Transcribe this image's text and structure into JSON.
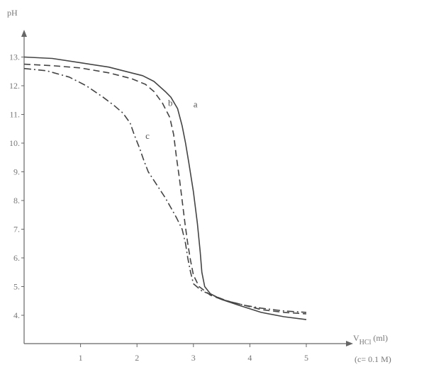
{
  "chart_data": {
    "type": "line",
    "title": "",
    "ylabel": "pH",
    "xlabel": "V",
    "xlabel_sub": "HCl",
    "xlabel_unit": "(ml)",
    "xlabel_note": "(c= 0.1 M)",
    "xlim": [
      0,
      5.6
    ],
    "ylim": [
      3,
      14
    ],
    "xticks": [
      1,
      2,
      3,
      4,
      5
    ],
    "yticks": [
      4,
      5,
      6,
      7,
      8,
      9,
      10,
      11,
      12,
      13
    ],
    "grid": false,
    "colors": {
      "axis": "#666666",
      "line": "#444444",
      "text": "#777777"
    },
    "series": [
      {
        "name": "a",
        "style": "solid",
        "label_at": [
          3.0,
          11.25
        ],
        "points": [
          [
            0,
            13.0
          ],
          [
            0.5,
            12.95
          ],
          [
            1.0,
            12.8
          ],
          [
            1.5,
            12.65
          ],
          [
            1.9,
            12.45
          ],
          [
            2.1,
            12.35
          ],
          [
            2.3,
            12.15
          ],
          [
            2.5,
            11.8
          ],
          [
            2.6,
            11.6
          ],
          [
            2.72,
            11.2
          ],
          [
            2.8,
            10.6
          ],
          [
            2.86,
            10.0
          ],
          [
            2.92,
            9.3
          ],
          [
            3.0,
            8.3
          ],
          [
            3.07,
            7.2
          ],
          [
            3.12,
            6.2
          ],
          [
            3.15,
            5.5
          ],
          [
            3.2,
            5.0
          ],
          [
            3.3,
            4.75
          ],
          [
            3.5,
            4.55
          ],
          [
            3.8,
            4.35
          ],
          [
            4.2,
            4.1
          ],
          [
            4.6,
            3.95
          ],
          [
            5.0,
            3.85
          ]
        ]
      },
      {
        "name": "b",
        "style": "dashed",
        "label_at": [
          2.55,
          11.3
        ],
        "points": [
          [
            0,
            12.75
          ],
          [
            0.5,
            12.7
          ],
          [
            1.0,
            12.62
          ],
          [
            1.5,
            12.45
          ],
          [
            1.9,
            12.25
          ],
          [
            2.15,
            12.05
          ],
          [
            2.3,
            11.8
          ],
          [
            2.45,
            11.4
          ],
          [
            2.58,
            10.9
          ],
          [
            2.65,
            10.3
          ],
          [
            2.7,
            9.5
          ],
          [
            2.75,
            8.8
          ],
          [
            2.8,
            8.0
          ],
          [
            2.85,
            7.2
          ],
          [
            2.9,
            6.5
          ],
          [
            2.95,
            5.9
          ],
          [
            3.0,
            5.4
          ],
          [
            3.1,
            5.0
          ],
          [
            3.3,
            4.7
          ],
          [
            3.5,
            4.55
          ],
          [
            3.8,
            4.4
          ],
          [
            4.2,
            4.2
          ],
          [
            4.6,
            4.1
          ],
          [
            5.0,
            4.05
          ]
        ]
      },
      {
        "name": "c",
        "style": "dashdot",
        "label_at": [
          2.15,
          10.15
        ],
        "points": [
          [
            0,
            12.6
          ],
          [
            0.4,
            12.52
          ],
          [
            0.8,
            12.3
          ],
          [
            1.1,
            12.0
          ],
          [
            1.4,
            11.6
          ],
          [
            1.6,
            11.3
          ],
          [
            1.75,
            11.05
          ],
          [
            1.88,
            10.7
          ],
          [
            1.95,
            10.3
          ],
          [
            2.05,
            9.8
          ],
          [
            2.12,
            9.4
          ],
          [
            2.2,
            9.0
          ],
          [
            2.3,
            8.7
          ],
          [
            2.4,
            8.4
          ],
          [
            2.5,
            8.1
          ],
          [
            2.6,
            7.75
          ],
          [
            2.7,
            7.4
          ],
          [
            2.8,
            7.0
          ],
          [
            2.86,
            6.5
          ],
          [
            2.9,
            6.0
          ],
          [
            2.95,
            5.5
          ],
          [
            3.0,
            5.1
          ],
          [
            3.15,
            4.85
          ],
          [
            3.4,
            4.65
          ],
          [
            3.6,
            4.5
          ],
          [
            3.9,
            4.35
          ],
          [
            4.2,
            4.25
          ],
          [
            4.6,
            4.15
          ],
          [
            5.0,
            4.1
          ]
        ]
      }
    ]
  }
}
